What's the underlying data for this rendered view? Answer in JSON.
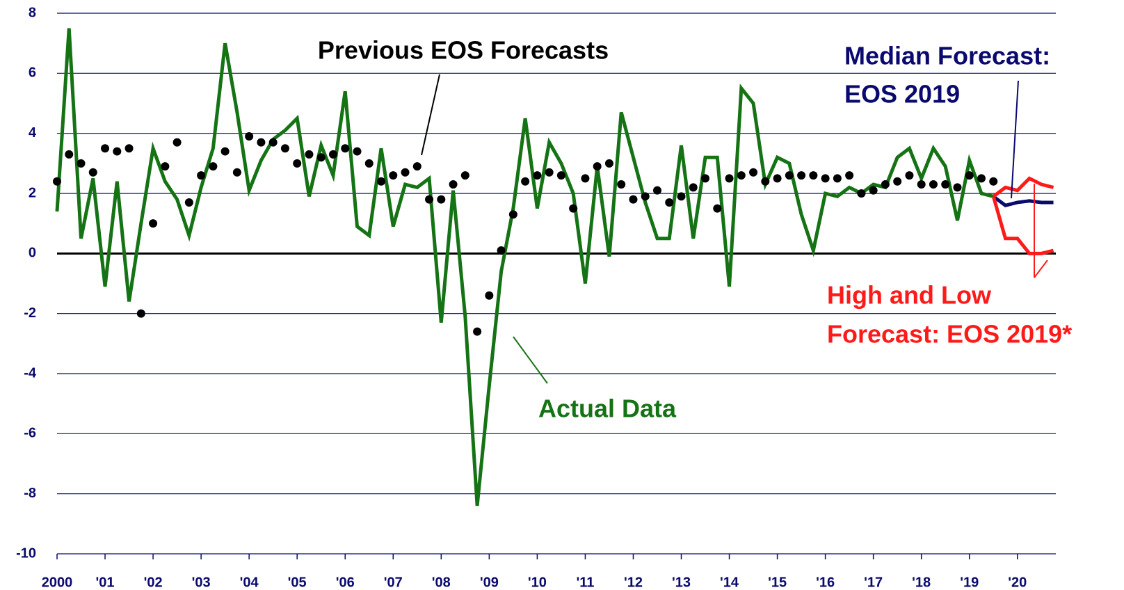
{
  "chart_data": {
    "type": "line",
    "x": [
      2000,
      2000.25,
      2000.5,
      2000.75,
      2001,
      2001.25,
      2001.5,
      2001.75,
      2002,
      2002.25,
      2002.5,
      2002.75,
      2003,
      2003.25,
      2003.5,
      2003.75,
      2004,
      2004.25,
      2004.5,
      2004.75,
      2005,
      2005.25,
      2005.5,
      2005.75,
      2006,
      2006.25,
      2006.5,
      2006.75,
      2007,
      2007.25,
      2007.5,
      2007.75,
      2008,
      2008.25,
      2008.5,
      2008.75,
      2009,
      2009.25,
      2009.5,
      2009.75,
      2010,
      2010.25,
      2010.5,
      2010.75,
      2011,
      2011.25,
      2011.5,
      2011.75,
      2012,
      2012.25,
      2012.5,
      2012.75,
      2013,
      2013.25,
      2013.5,
      2013.75,
      2014,
      2014.25,
      2014.5,
      2014.75,
      2015,
      2015.25,
      2015.5,
      2015.75,
      2016,
      2016.25,
      2016.5,
      2016.75,
      2017,
      2017.25,
      2017.5,
      2017.75,
      2018,
      2018.25,
      2018.5,
      2018.75,
      2019,
      2019.25,
      2019.5,
      2019.75,
      2020,
      2020.25,
      2020.5,
      2020.75
    ],
    "series": [
      {
        "name": "Actual Data",
        "type": "line",
        "color": "#157315",
        "values": [
          1.4,
          7.5,
          0.5,
          2.5,
          -1.1,
          2.4,
          -1.6,
          1.0,
          3.5,
          2.4,
          1.8,
          0.6,
          2.2,
          3.5,
          7.0,
          4.7,
          2.1,
          3.1,
          3.8,
          4.1,
          4.5,
          1.9,
          3.6,
          2.6,
          5.4,
          0.9,
          0.6,
          3.5,
          0.9,
          2.3,
          2.2,
          2.5,
          -2.3,
          2.1,
          -2.1,
          -8.4,
          -4.4,
          -0.6,
          1.5,
          4.5,
          1.5,
          3.7,
          3.0,
          2.0,
          -1.0,
          2.9,
          -0.1,
          4.7,
          3.2,
          1.7,
          0.5,
          0.5,
          3.6,
          0.5,
          3.2,
          3.2,
          -1.1,
          5.5,
          5.0,
          2.3,
          3.2,
          3.0,
          1.3,
          0.1,
          2.0,
          1.9,
          2.2,
          2.0,
          2.3,
          2.2,
          3.2,
          3.5,
          2.5,
          3.5,
          2.9,
          1.1,
          3.1,
          2.0,
          1.9,
          null,
          null,
          null,
          null,
          null
        ]
      },
      {
        "name": "Previous EOS Forecasts",
        "type": "scatter",
        "color": "#000000",
        "values": [
          2.4,
          3.3,
          3.0,
          2.7,
          3.5,
          3.4,
          3.5,
          -2.0,
          1.0,
          2.9,
          3.7,
          1.7,
          2.6,
          2.9,
          3.4,
          2.7,
          3.9,
          3.7,
          3.7,
          3.5,
          3.0,
          3.3,
          3.2,
          3.3,
          3.5,
          3.4,
          3.0,
          2.4,
          2.6,
          2.7,
          2.9,
          1.8,
          1.8,
          2.3,
          2.6,
          -2.6,
          -1.4,
          0.1,
          1.3,
          2.4,
          2.6,
          2.7,
          2.6,
          1.5,
          2.5,
          2.9,
          3.0,
          2.3,
          1.8,
          1.9,
          2.1,
          1.7,
          1.9,
          2.2,
          2.5,
          1.5,
          2.5,
          2.6,
          2.7,
          2.4,
          2.5,
          2.6,
          2.6,
          2.6,
          2.5,
          2.5,
          2.6,
          2.0,
          2.1,
          2.3,
          2.4,
          2.6,
          2.3,
          2.3,
          2.3,
          2.2,
          2.6,
          2.5,
          2.4,
          null,
          null,
          null,
          null,
          null
        ]
      },
      {
        "name": [
          "Median Forecast:",
          "EOS 2019"
        ],
        "type": "line",
        "color": "#0a0a6e",
        "values": [
          null,
          null,
          null,
          null,
          null,
          null,
          null,
          null,
          null,
          null,
          null,
          null,
          null,
          null,
          null,
          null,
          null,
          null,
          null,
          null,
          null,
          null,
          null,
          null,
          null,
          null,
          null,
          null,
          null,
          null,
          null,
          null,
          null,
          null,
          null,
          null,
          null,
          null,
          null,
          null,
          null,
          null,
          null,
          null,
          null,
          null,
          null,
          null,
          null,
          null,
          null,
          null,
          null,
          null,
          null,
          null,
          null,
          null,
          null,
          null,
          null,
          null,
          null,
          null,
          null,
          null,
          null,
          null,
          null,
          null,
          null,
          null,
          null,
          null,
          null,
          null,
          null,
          null,
          1.9,
          1.6,
          1.7,
          1.75,
          1.7,
          1.7
        ]
      },
      {
        "name": [
          "High and Low",
          "Forecast: EOS 2019*"
        ],
        "type": "line",
        "color": "#ff1a1a",
        "values": [
          null,
          null,
          null,
          null,
          null,
          null,
          null,
          null,
          null,
          null,
          null,
          null,
          null,
          null,
          null,
          null,
          null,
          null,
          null,
          null,
          null,
          null,
          null,
          null,
          null,
          null,
          null,
          null,
          null,
          null,
          null,
          null,
          null,
          null,
          null,
          null,
          null,
          null,
          null,
          null,
          null,
          null,
          null,
          null,
          null,
          null,
          null,
          null,
          null,
          null,
          null,
          null,
          null,
          null,
          null,
          null,
          null,
          null,
          null,
          null,
          null,
          null,
          null,
          null,
          null,
          null,
          null,
          null,
          null,
          null,
          null,
          null,
          null,
          null,
          null,
          null,
          null,
          null,
          1.9,
          2.2,
          2.1,
          2.5,
          2.3,
          2.2
        ]
      },
      {
        "type": "line",
        "color": "#ff1a1a",
        "values": [
          null,
          null,
          null,
          null,
          null,
          null,
          null,
          null,
          null,
          null,
          null,
          null,
          null,
          null,
          null,
          null,
          null,
          null,
          null,
          null,
          null,
          null,
          null,
          null,
          null,
          null,
          null,
          null,
          null,
          null,
          null,
          null,
          null,
          null,
          null,
          null,
          null,
          null,
          null,
          null,
          null,
          null,
          null,
          null,
          null,
          null,
          null,
          null,
          null,
          null,
          null,
          null,
          null,
          null,
          null,
          null,
          null,
          null,
          null,
          null,
          null,
          null,
          null,
          null,
          null,
          null,
          null,
          null,
          null,
          null,
          null,
          null,
          null,
          null,
          null,
          null,
          null,
          null,
          1.9,
          0.5,
          0.5,
          0.0,
          0.0,
          0.1
        ]
      }
    ],
    "xlim": [
      2000,
      2020.8
    ],
    "ylim": [
      -10,
      8
    ],
    "xticks": [
      {
        "value": 2000,
        "label": "2000"
      },
      {
        "value": 2001,
        "label": "'01"
      },
      {
        "value": 2002,
        "label": "'02"
      },
      {
        "value": 2003,
        "label": "'03"
      },
      {
        "value": 2004,
        "label": "'04"
      },
      {
        "value": 2005,
        "label": "'05"
      },
      {
        "value": 2006,
        "label": "'06"
      },
      {
        "value": 2007,
        "label": "'07"
      },
      {
        "value": 2008,
        "label": "'08"
      },
      {
        "value": 2009,
        "label": "'09"
      },
      {
        "value": 2010,
        "label": "'10"
      },
      {
        "value": 2011,
        "label": "'11"
      },
      {
        "value": 2012,
        "label": "'12"
      },
      {
        "value": 2013,
        "label": "'13"
      },
      {
        "value": 2014,
        "label": "'14"
      },
      {
        "value": 2015,
        "label": "'15"
      },
      {
        "value": 2016,
        "label": "'16"
      },
      {
        "value": 2017,
        "label": "'17"
      },
      {
        "value": 2018,
        "label": "'18"
      },
      {
        "value": 2019,
        "label": "'19"
      },
      {
        "value": 2020,
        "label": "'20"
      }
    ],
    "yticks": [
      8,
      6,
      4,
      2,
      0,
      -2,
      -4,
      -6,
      -8,
      -10
    ],
    "grid": true,
    "grid_color": "#0a0a6e",
    "zero_line": true
  }
}
